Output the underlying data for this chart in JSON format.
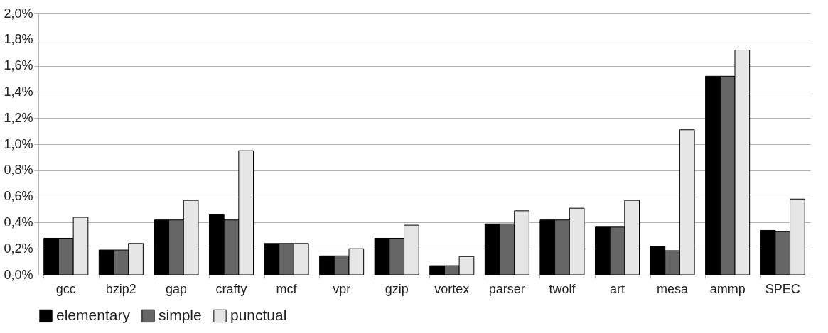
{
  "chart_data": {
    "type": "bar",
    "categories": [
      "gcc",
      "bzip2",
      "gap",
      "crafty",
      "mcf",
      "vpr",
      "gzip",
      "vortex",
      "parser",
      "twolf",
      "art",
      "mesa",
      "ammp",
      "SPEC"
    ],
    "series": [
      {
        "name": "elementary",
        "color": "#000000",
        "values": [
          0.28,
          0.19,
          0.42,
          0.46,
          0.24,
          0.145,
          0.28,
          0.07,
          0.39,
          0.42,
          0.365,
          0.22,
          1.52,
          0.34
        ]
      },
      {
        "name": "simple",
        "color": "#666666",
        "values": [
          0.28,
          0.19,
          0.42,
          0.42,
          0.24,
          0.145,
          0.28,
          0.07,
          0.39,
          0.42,
          0.365,
          0.185,
          1.52,
          0.33
        ]
      },
      {
        "name": "punctual",
        "color": "#e6e6e6",
        "values": [
          0.44,
          0.24,
          0.57,
          0.95,
          0.24,
          0.2,
          0.38,
          0.14,
          0.49,
          0.51,
          0.57,
          1.11,
          1.72,
          0.58
        ]
      }
    ],
    "ylim": [
      0,
      2.0
    ],
    "yticks": [
      {
        "value": 0,
        "label": "0,0%"
      },
      {
        "value": 0.2,
        "label": "0,2%"
      },
      {
        "value": 0.4,
        "label": "0,4%"
      },
      {
        "value": 0.6,
        "label": "0,6%"
      },
      {
        "value": 0.8,
        "label": "0,8%"
      },
      {
        "value": 1.0,
        "label": "1,0%"
      },
      {
        "value": 1.2,
        "label": "1,2%"
      },
      {
        "value": 1.4,
        "label": "1,4%"
      },
      {
        "value": 1.6,
        "label": "1,6%"
      },
      {
        "value": 1.8,
        "label": "1,8%"
      },
      {
        "value": 2.0,
        "label": "2,0%"
      }
    ],
    "grid": "y",
    "legend": "bottom"
  }
}
